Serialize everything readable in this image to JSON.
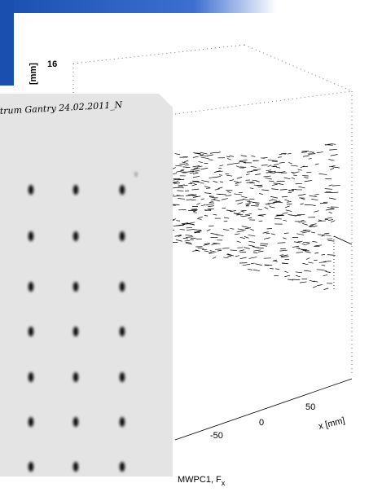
{
  "plot": {
    "z_tick": "16",
    "z_label": "[mm]",
    "x_ticks": [
      "-50",
      "0",
      "50"
    ],
    "x_label": "x [mm]"
  },
  "film": {
    "note": "trum Gantry 24.02.2011_N"
  },
  "caption": {
    "text": "MWPC1, F",
    "subscript": "x"
  }
}
